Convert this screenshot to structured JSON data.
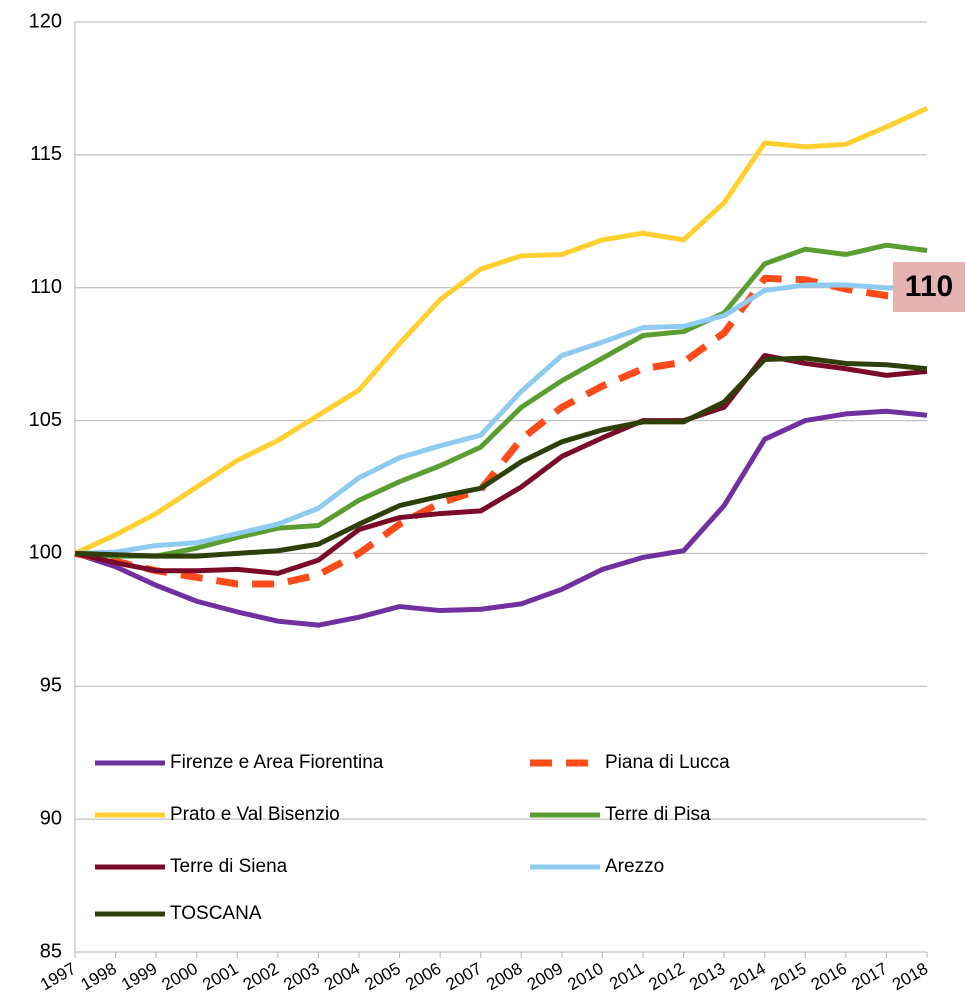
{
  "chart_data": {
    "type": "line",
    "categories": [
      "1997",
      "1998",
      "1999",
      "2000",
      "2001",
      "2002",
      "2003",
      "2004",
      "2005",
      "2006",
      "2007",
      "2008",
      "2009",
      "2010",
      "2011",
      "2012",
      "2013",
      "2014",
      "2015",
      "2016",
      "2017",
      "2018"
    ],
    "series": [
      {
        "name": "Firenze e Area Fiorentina",
        "color": "#7030a0",
        "values": [
          100,
          99.5,
          98.8,
          98.2,
          97.8,
          97.45,
          97.3,
          97.6,
          98.0,
          97.85,
          97.9,
          98.1,
          98.65,
          99.4,
          99.85,
          100.1,
          101.8,
          104.3,
          105.0,
          105.25,
          105.35,
          105.2
        ]
      },
      {
        "name": "Piana di Lucca",
        "color": "#ff4b1a",
        "style": "dashed",
        "values": [
          100,
          99.7,
          99.35,
          99.1,
          98.85,
          98.85,
          99.2,
          100.0,
          101.1,
          101.9,
          102.4,
          104.3,
          105.5,
          106.3,
          106.95,
          107.2,
          108.3,
          110.35,
          110.3,
          109.95,
          109.7,
          109.6
        ]
      },
      {
        "name": "Prato e Val Bisenzio",
        "color": "#ffd030",
        "values": [
          100,
          100.7,
          101.5,
          102.5,
          103.5,
          104.25,
          105.2,
          106.15,
          107.9,
          109.55,
          110.7,
          111.2,
          111.25,
          111.8,
          112.05,
          111.8,
          113.2,
          115.45,
          115.3,
          115.4,
          116.05,
          116.75
        ]
      },
      {
        "name": "Terre di Pisa",
        "color": "#5a9e32",
        "values": [
          100,
          99.9,
          99.9,
          100.2,
          100.6,
          100.95,
          101.05,
          102.0,
          102.7,
          103.3,
          104.0,
          105.5,
          106.5,
          107.35,
          108.2,
          108.35,
          109.05,
          110.9,
          111.45,
          111.25,
          111.6,
          111.4
        ]
      },
      {
        "name": "Terre di Siena",
        "color": "#7b0a2a",
        "values": [
          100,
          99.65,
          99.35,
          99.35,
          99.4,
          99.25,
          99.75,
          100.9,
          101.35,
          101.5,
          101.6,
          102.5,
          103.65,
          104.35,
          105.0,
          105.0,
          105.5,
          107.45,
          107.15,
          106.95,
          106.7,
          106.85
        ]
      },
      {
        "name": "Arezzo",
        "color": "#8fcbf0",
        "values": [
          100,
          100.05,
          100.3,
          100.4,
          100.75,
          101.1,
          101.7,
          102.85,
          103.6,
          104.05,
          104.45,
          106.1,
          107.45,
          107.95,
          108.5,
          108.55,
          108.95,
          109.9,
          110.1,
          110.1,
          110.0,
          109.95
        ]
      },
      {
        "name": "TOSCANA",
        "color": "#2f3f0a",
        "values": [
          100,
          99.95,
          99.9,
          99.9,
          100.0,
          100.1,
          100.35,
          101.1,
          101.8,
          102.15,
          102.45,
          103.45,
          104.2,
          104.65,
          104.95,
          104.95,
          105.7,
          107.3,
          107.35,
          107.15,
          107.1,
          106.95
        ]
      }
    ],
    "annotation": "110",
    "ylim": [
      85,
      120
    ],
    "yticks": [
      85,
      90,
      95,
      100,
      105,
      110,
      115,
      120
    ],
    "grid": true
  }
}
